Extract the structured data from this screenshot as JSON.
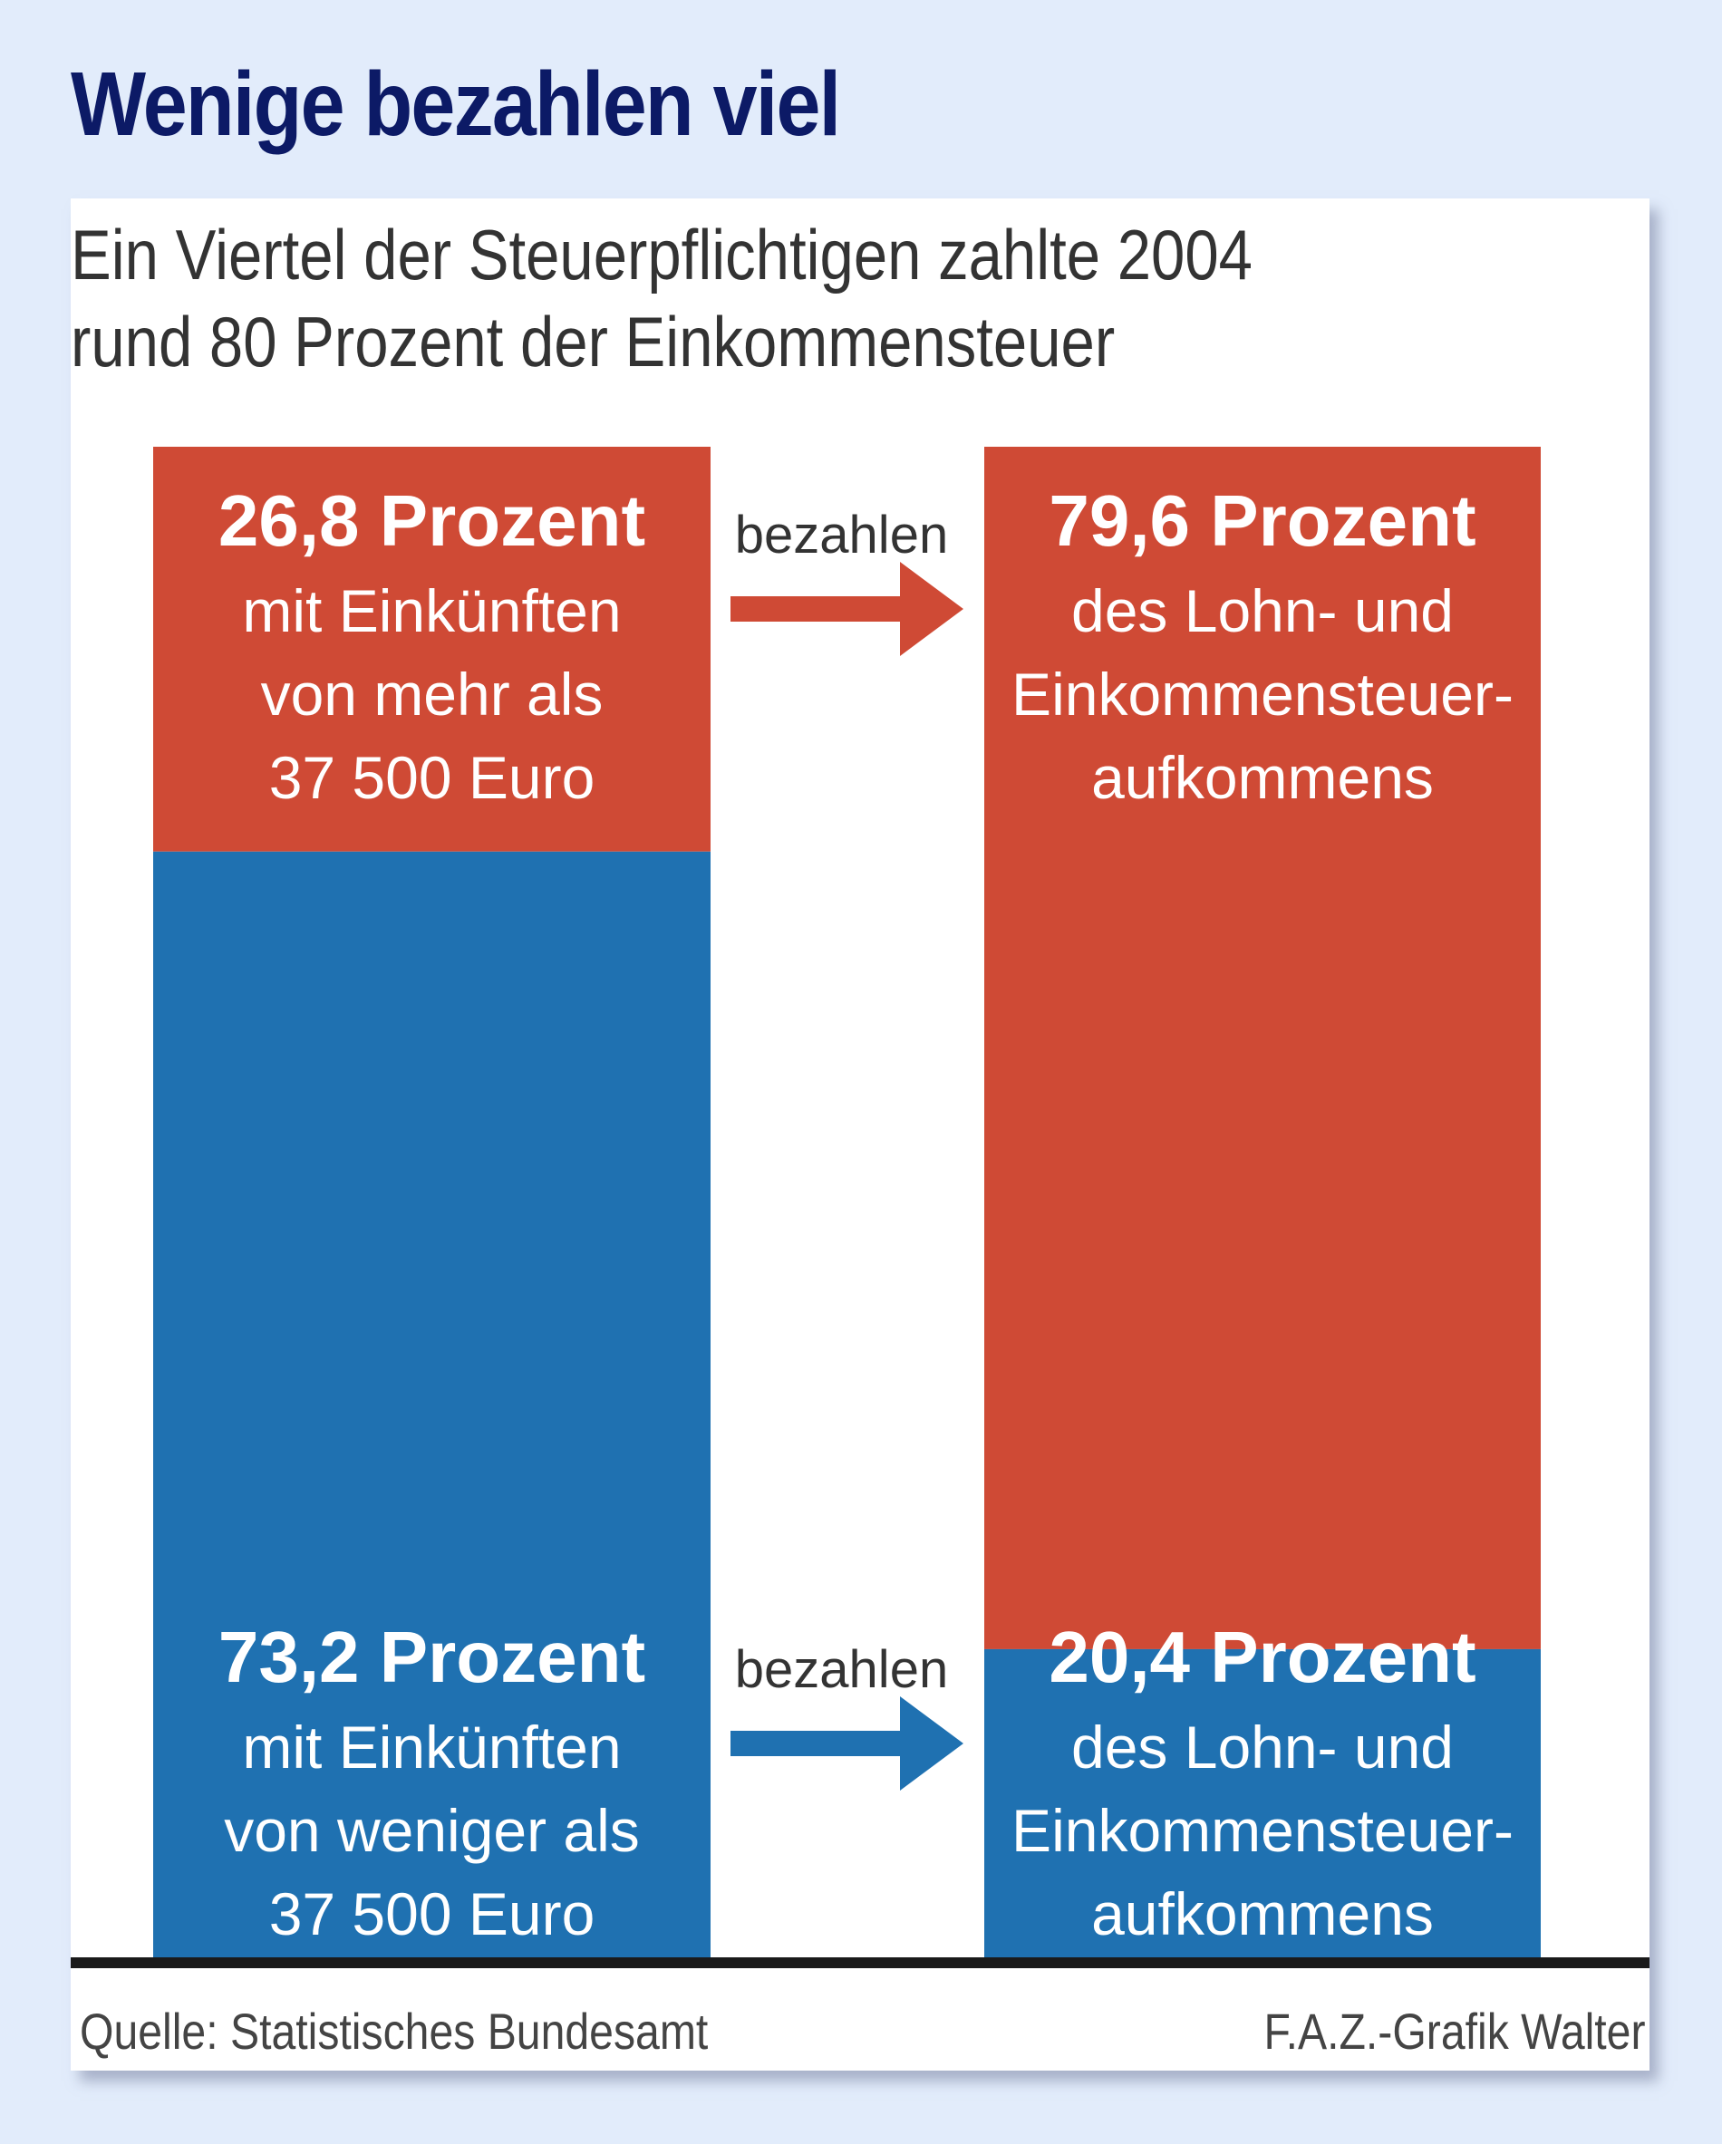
{
  "title": "Wenige bezahlen viel",
  "subtitle_lines": [
    "Ein Viertel der Steuerpflichtigen zahlte 2004",
    "rund 80 Prozent der Einkommensteuer"
  ],
  "colors": {
    "red": "#cf4a35",
    "blue": "#1f71b1",
    "title": "#0c1a66",
    "background": "#e2ecfb"
  },
  "connector_label": "bezahlen",
  "chart_data": {
    "type": "bar",
    "stacked": true,
    "title": "Wenige bezahlen viel",
    "subtitle": "Ein Viertel der Steuerpflichtigen zahlte 2004 rund 80 Prozent der Einkommensteuer",
    "categories": [
      "Steuerpflichtige",
      "Lohn- und Einkommensteueraufkommen"
    ],
    "series": [
      {
        "name": "Einkünfte von mehr als 37 500 Euro",
        "color": "#cf4a35",
        "values": [
          26.8,
          79.6
        ]
      },
      {
        "name": "Einkünfte von weniger als 37 500 Euro",
        "color": "#1f71b1",
        "values": [
          73.2,
          20.4
        ]
      }
    ],
    "ylim": [
      0,
      100
    ],
    "unit": "Prozent",
    "labels": {
      "left_top": {
        "value": "26,8 Prozent",
        "lines": [
          "mit Einkünften",
          "von mehr als",
          "37 500 Euro"
        ]
      },
      "left_bottom": {
        "value": "73,2 Prozent",
        "lines": [
          "mit Einkünften",
          "von weniger als",
          "37 500 Euro"
        ]
      },
      "right_top": {
        "value": "79,6 Prozent",
        "lines": [
          "des Lohn- und",
          "Einkommensteuer-",
          "aufkommens"
        ]
      },
      "right_bottom": {
        "value": "20,4 Prozent",
        "lines": [
          "des Lohn- und",
          "Einkommensteuer-",
          "aufkommens"
        ]
      }
    },
    "arrows": [
      {
        "label": "bezahlen",
        "from": "left_top",
        "to": "right_top",
        "color": "#cf4a35"
      },
      {
        "label": "bezahlen",
        "from": "left_bottom",
        "to": "right_bottom",
        "color": "#1f71b1"
      }
    ],
    "grid": false,
    "legend": "none"
  },
  "footer": {
    "source": "Quelle: Statistisches Bundesamt",
    "credit": "F.A.Z.-Grafik Walter"
  }
}
